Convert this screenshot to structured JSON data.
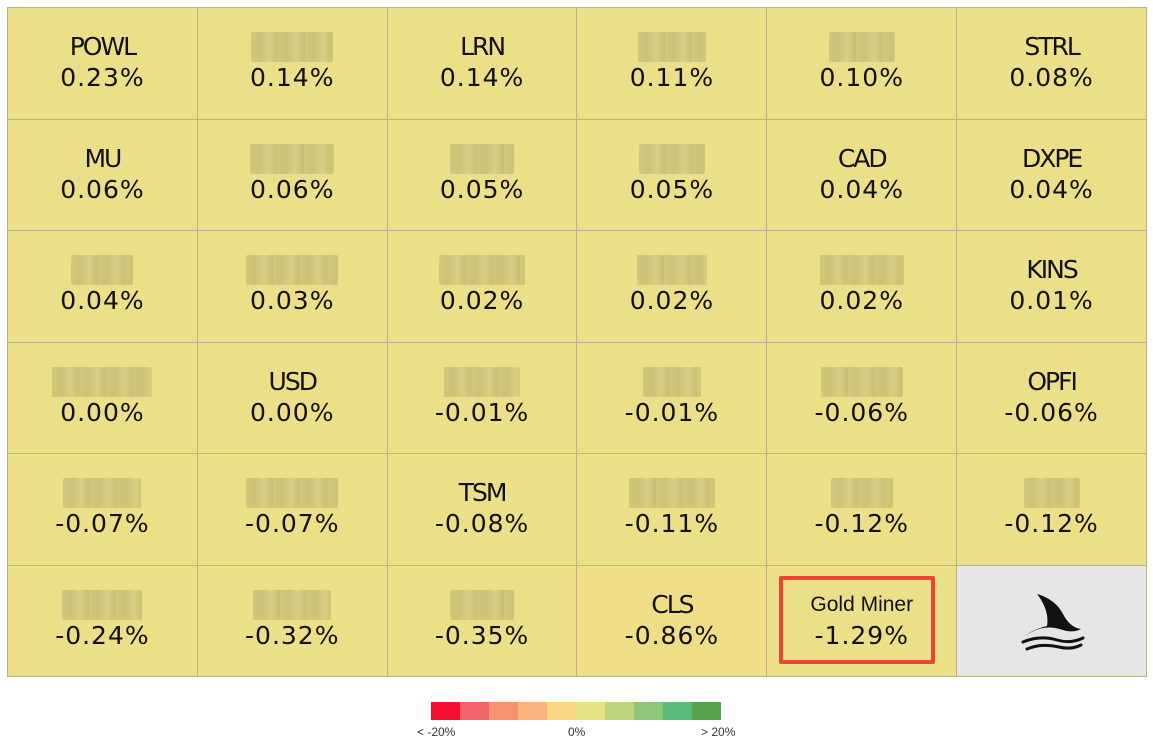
{
  "tiles": [
    {
      "ticker": "POWL",
      "pct": "0.23%"
    },
    {
      "ticker": "",
      "pct": "0.14%",
      "redacted_width": 82
    },
    {
      "ticker": "LRN",
      "pct": "0.14%"
    },
    {
      "ticker": "",
      "pct": "0.11%",
      "redacted_width": 68
    },
    {
      "ticker": "",
      "pct": "0.10%",
      "redacted_width": 66
    },
    {
      "ticker": "STRL",
      "pct": "0.08%"
    },
    {
      "ticker": "MU",
      "pct": "0.06%"
    },
    {
      "ticker": "",
      "pct": "0.06%",
      "redacted_width": 84
    },
    {
      "ticker": "",
      "pct": "0.05%",
      "redacted_width": 64
    },
    {
      "ticker": "",
      "pct": "0.05%",
      "redacted_width": 66
    },
    {
      "ticker": "CAD",
      "pct": "0.04%"
    },
    {
      "ticker": "DXPE",
      "pct": "0.04%"
    },
    {
      "ticker": "",
      "pct": "0.04%",
      "redacted_width": 62
    },
    {
      "ticker": "",
      "pct": "0.03%",
      "redacted_width": 92
    },
    {
      "ticker": "",
      "pct": "0.02%",
      "redacted_width": 86
    },
    {
      "ticker": "",
      "pct": "0.02%",
      "redacted_width": 70
    },
    {
      "ticker": "",
      "pct": "0.02%",
      "redacted_width": 84
    },
    {
      "ticker": "KINS",
      "pct": "0.01%"
    },
    {
      "ticker": "",
      "pct": "0.00%",
      "redacted_width": 100
    },
    {
      "ticker": "USD",
      "pct": "0.00%"
    },
    {
      "ticker": "",
      "pct": "-0.01%",
      "redacted_width": 76
    },
    {
      "ticker": "",
      "pct": "-0.01%",
      "redacted_width": 58
    },
    {
      "ticker": "",
      "pct": "-0.06%",
      "redacted_width": 82
    },
    {
      "ticker": "OPFI",
      "pct": "-0.06%"
    },
    {
      "ticker": "",
      "pct": "-0.07%",
      "redacted_width": 78
    },
    {
      "ticker": "",
      "pct": "-0.07%",
      "redacted_width": 92
    },
    {
      "ticker": "TSM",
      "pct": "-0.08%"
    },
    {
      "ticker": "",
      "pct": "-0.11%",
      "redacted_width": 86
    },
    {
      "ticker": "",
      "pct": "-0.12%",
      "redacted_width": 62
    },
    {
      "ticker": "",
      "pct": "-0.12%",
      "redacted_width": 56
    },
    {
      "ticker": "",
      "pct": "-0.24%",
      "redacted_width": 80
    },
    {
      "ticker": "",
      "pct": "-0.32%",
      "redacted_width": 78
    },
    {
      "ticker": "",
      "pct": "-0.35%",
      "redacted_width": 64
    },
    {
      "ticker": "CLS",
      "pct": "-0.86%"
    }
  ],
  "gold_tile": {
    "label": "Gold Miner",
    "pct": "-1.29%"
  },
  "logo_icon": "shark-fin-icon",
  "legend": {
    "colors": [
      "#f2102e",
      "#f3636a",
      "#f6926f",
      "#fab37c",
      "#fbd783",
      "#e6e384",
      "#bfd57d",
      "#8ec67a",
      "#5bbb7a",
      "#56a34a"
    ],
    "left_label": "< -20%",
    "mid_label": "0%",
    "right_label": "> 20%"
  },
  "colors": {
    "tile": "#ebdf88",
    "highlight": "#ee4433",
    "logo_bg": "#e6e6e6"
  }
}
